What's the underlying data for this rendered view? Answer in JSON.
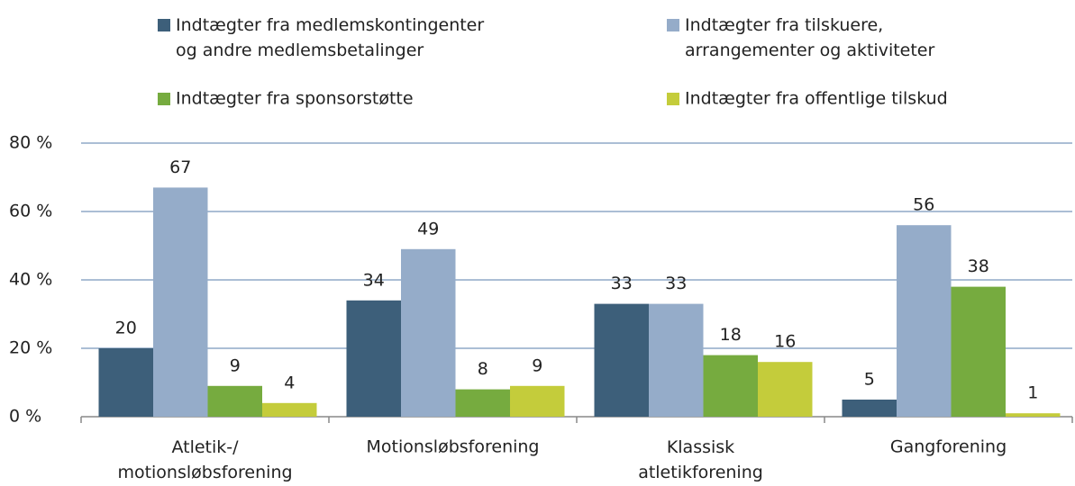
{
  "chart_data": {
    "type": "bar",
    "categories": [
      "Atletik-/\nmotionsløbsforening",
      "Motionsløbsforening",
      "Klassisk\natletikforening",
      "Gangforening"
    ],
    "series": [
      {
        "name": "Indtægter fra medlemskontingenter\nog andre medlemsbetalinger",
        "color": "#3d5f7a",
        "values": [
          20,
          34,
          33,
          5
        ]
      },
      {
        "name": "Indtægter fra tilskuere,\narrangementer og aktiviteter",
        "color": "#95acc9",
        "values": [
          67,
          49,
          33,
          56
        ]
      },
      {
        "name": "Indtægter fra sponsorstøtte",
        "color": "#76ab3f",
        "values": [
          9,
          8,
          18,
          38
        ]
      },
      {
        "name": "Indtægter fra offentlige tilskud",
        "color": "#c4cc3b",
        "values": [
          4,
          9,
          16,
          1
        ]
      }
    ],
    "ylim": [
      0,
      80
    ],
    "yticks": [
      {
        "value": 0,
        "label": "0 %"
      },
      {
        "value": 20,
        "label": "20 %"
      },
      {
        "value": 40,
        "label": "40 %"
      },
      {
        "value": 60,
        "label": "60 %"
      },
      {
        "value": 80,
        "label": "80 %"
      }
    ],
    "grid": true
  }
}
